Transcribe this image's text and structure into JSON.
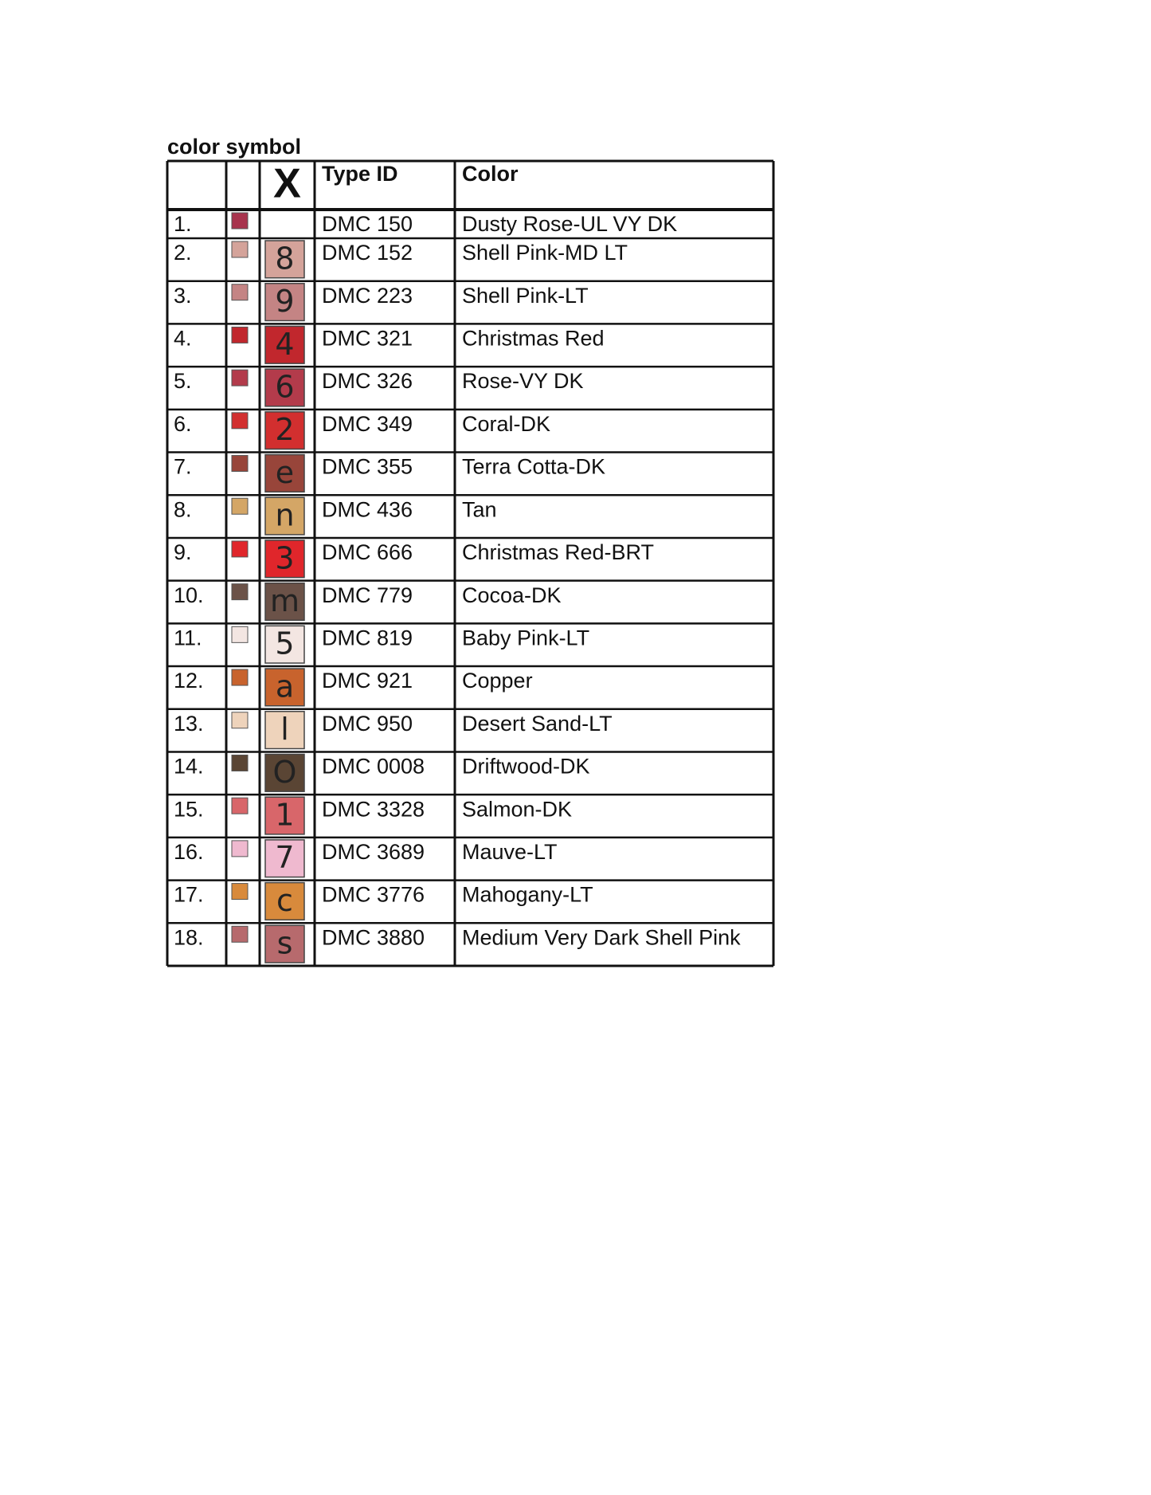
{
  "title": "color symbol",
  "table": {
    "header": {
      "symbol": "X",
      "type_id": "Type ID",
      "color": "Color"
    },
    "rows": [
      {
        "number": "1.",
        "color": "#a8334d",
        "symbol": null,
        "type_id": "DMC 150",
        "name": "Dusty Rose-UL VY DK"
      },
      {
        "number": "2.",
        "color": "#d4a39a",
        "symbol": "8",
        "type_id": "DMC 152",
        "name": "Shell Pink-MD LT"
      },
      {
        "number": "3.",
        "color": "#c48484",
        "symbol": "9",
        "type_id": "DMC 223",
        "name": "Shell Pink-LT"
      },
      {
        "number": "4.",
        "color": "#c1272d",
        "symbol": "4",
        "type_id": "DMC 321",
        "name": "Christmas Red"
      },
      {
        "number": "5.",
        "color": "#b33b4b",
        "symbol": "6",
        "type_id": "DMC 326",
        "name": "Rose-VY DK"
      },
      {
        "number": "6.",
        "color": "#d22f2f",
        "symbol": "2",
        "type_id": "DMC 349",
        "name": "Coral-DK"
      },
      {
        "number": "7.",
        "color": "#98453a",
        "symbol": "e",
        "type_id": "DMC 355",
        "name": "Terra Cotta-DK"
      },
      {
        "number": "8.",
        "color": "#d4a666",
        "symbol": "n",
        "type_id": "DMC 436",
        "name": "Tan"
      },
      {
        "number": "9.",
        "color": "#e0262b",
        "symbol": "3",
        "type_id": "DMC 666",
        "name": "Christmas Red-BRT"
      },
      {
        "number": "10.",
        "color": "#6b5248",
        "symbol": "m",
        "type_id": "DMC 779",
        "name": "Cocoa-DK"
      },
      {
        "number": "11.",
        "color": "#f3e6e2",
        "symbol": "5",
        "type_id": "DMC 819",
        "name": "Baby Pink-LT"
      },
      {
        "number": "12.",
        "color": "#c8632d",
        "symbol": "a",
        "type_id": "DMC 921",
        "name": "Copper"
      },
      {
        "number": "13.",
        "color": "#eed3bb",
        "symbol": "l",
        "type_id": "DMC 950",
        "name": "Desert Sand-LT"
      },
      {
        "number": "14.",
        "color": "#5a4534",
        "symbol": "O",
        "type_id": "DMC 0008",
        "name": "Driftwood-DK"
      },
      {
        "number": "15.",
        "color": "#d8666a",
        "symbol": "1",
        "type_id": "DMC 3328",
        "name": "Salmon-DK"
      },
      {
        "number": "16.",
        "color": "#efb9cf",
        "symbol": "7",
        "type_id": "DMC 3689",
        "name": "Mauve-LT"
      },
      {
        "number": "17.",
        "color": "#d88a3c",
        "symbol": "c",
        "type_id": "DMC 3776",
        "name": "Mahogany-LT"
      },
      {
        "number": "18.",
        "color": "#b76a6d",
        "symbol": "s",
        "type_id": "DMC 3880",
        "name": "Medium Very Dark Shell Pink"
      }
    ]
  }
}
